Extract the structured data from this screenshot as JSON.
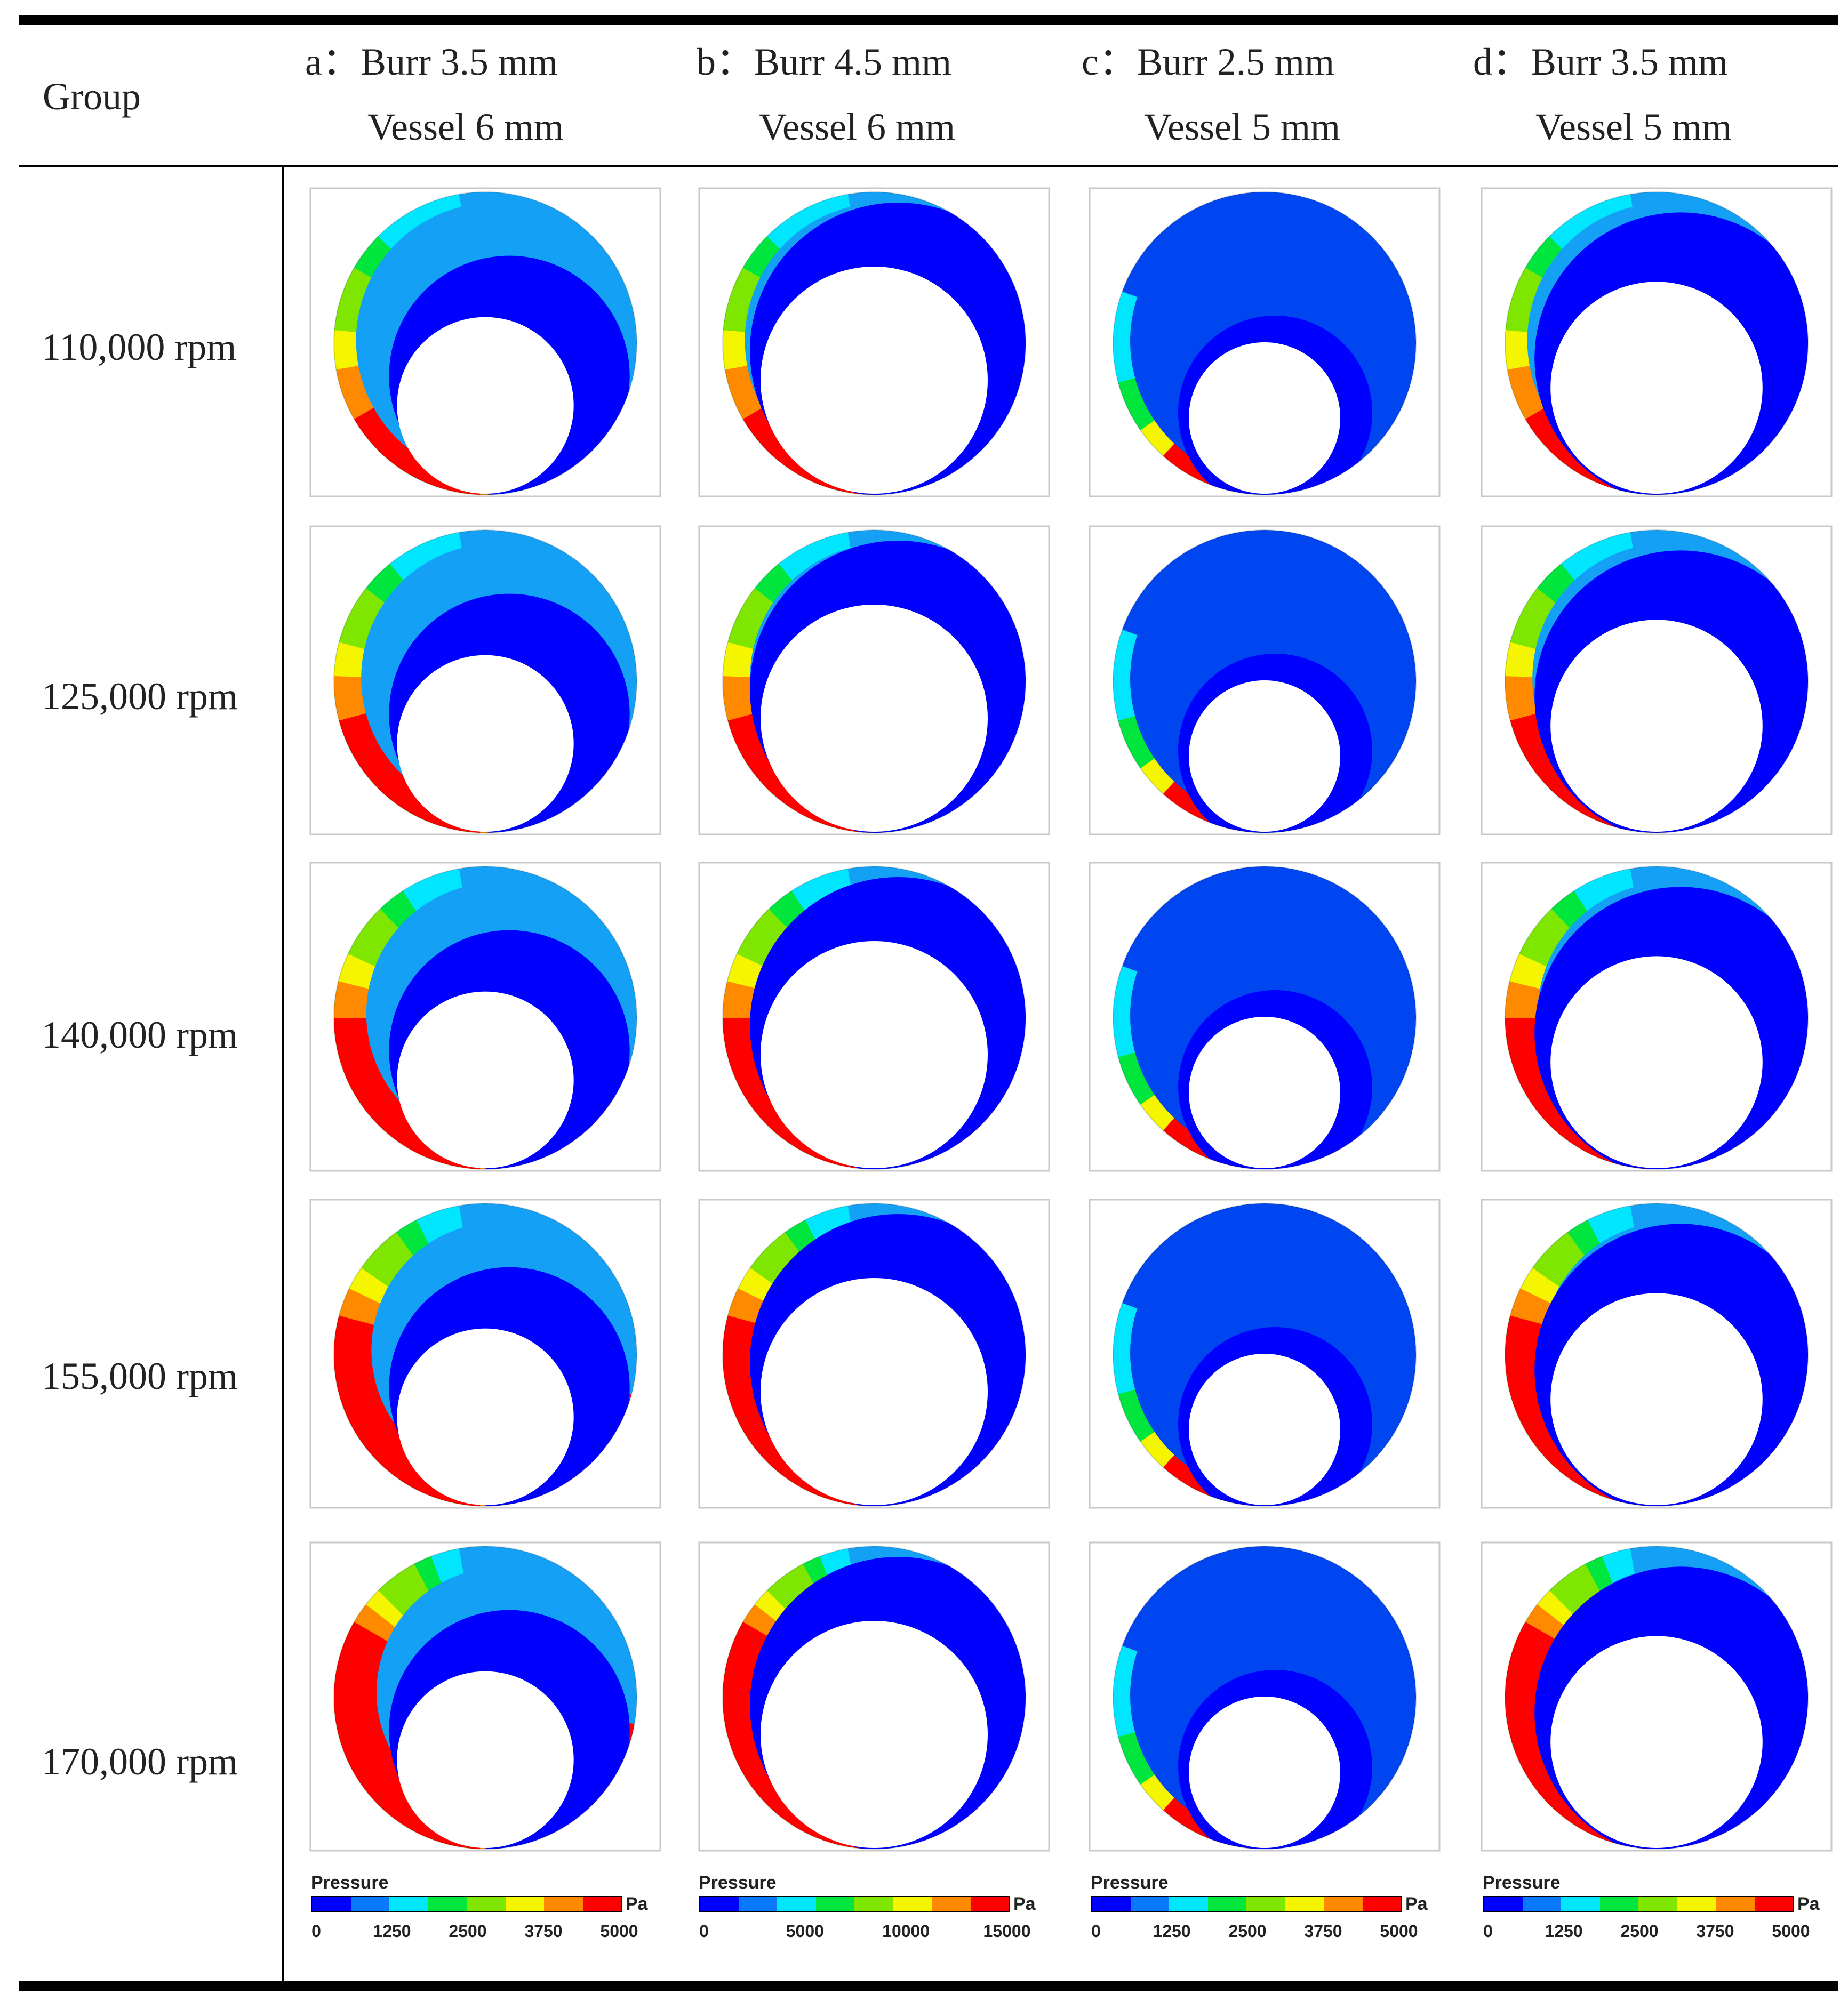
{
  "table": {
    "group_label": "Group",
    "columns": [
      {
        "label": "a：Burr 3.5 mm",
        "vessel": "Vessel 6 mm",
        "burr_mm": 3.5,
        "vessel_mm": 6
      },
      {
        "label": "b：Burr 4.5 mm",
        "vessel": "Vessel 6 mm",
        "burr_mm": 4.5,
        "vessel_mm": 6
      },
      {
        "label": "c：Burr 2.5 mm",
        "vessel": "Vessel 5 mm",
        "burr_mm": 2.5,
        "vessel_mm": 5
      },
      {
        "label": "d：Burr 3.5 mm",
        "vessel": "Vessel 5 mm",
        "burr_mm": 3.5,
        "vessel_mm": 5
      }
    ],
    "rows": [
      {
        "label": "110,000 rpm",
        "intensity": 0
      },
      {
        "label": "125,000 rpm",
        "intensity": 1
      },
      {
        "label": "140,000 rpm",
        "intensity": 2
      },
      {
        "label": "155,000 rpm",
        "intensity": 3
      },
      {
        "label": "170,000 rpm",
        "intensity": 4
      }
    ]
  },
  "colorbars": [
    {
      "title": "Pressure",
      "unit": "Pa",
      "ticks": [
        "0",
        "1250",
        "2500",
        "3750",
        "5000"
      ]
    },
    {
      "title": "Pressure",
      "unit": "Pa",
      "ticks": [
        "0",
        "5000",
        "10000",
        "15000"
      ]
    },
    {
      "title": "Pressure",
      "unit": "Pa",
      "ticks": [
        "0",
        "1250",
        "2500",
        "3750",
        "5000"
      ]
    },
    {
      "title": "Pressure",
      "unit": "Pa",
      "ticks": [
        "0",
        "1250",
        "2500",
        "3750",
        "5000"
      ]
    }
  ],
  "palette": [
    "#0000ff",
    "#0a78ff",
    "#00e6ff",
    "#00e63c",
    "#7fe600",
    "#f5f500",
    "#ff8a00",
    "#ff0000"
  ],
  "colors": {
    "background": "#ffffff",
    "rule": "#000000",
    "panel_border": "#c8c8c8",
    "blue_base": "#0046f0",
    "blue_dark": "#0000ff",
    "light_blue": "#14a0f5"
  }
}
